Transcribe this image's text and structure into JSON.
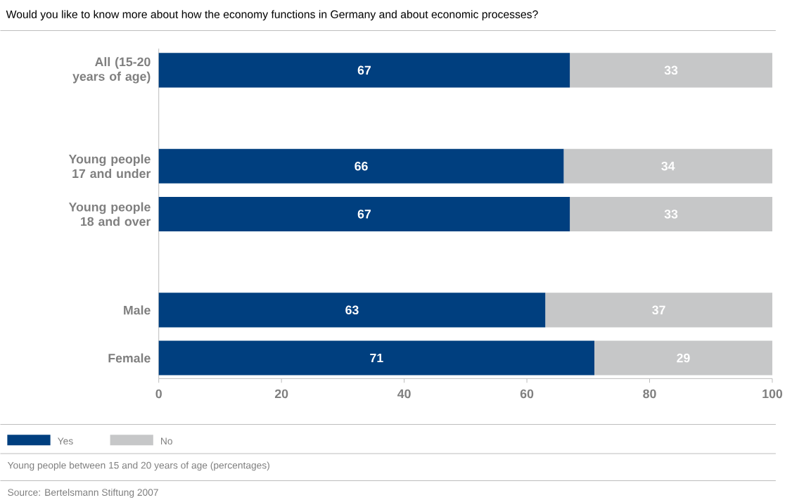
{
  "chart_data": {
    "type": "bar",
    "orientation": "horizontal",
    "stacked": true,
    "title": "Would you like to know more about how the economy functions in Germany and about economic processes?",
    "categories": [
      "All (15-20 years of age)",
      null,
      "Young people 17 and under",
      "Young people 18 and over",
      null,
      "Male",
      "Female"
    ],
    "series": [
      {
        "name": "Yes",
        "color": "#003f7f",
        "values": [
          67,
          null,
          66,
          67,
          null,
          63,
          71
        ]
      },
      {
        "name": "No",
        "color": "#c6c7c8",
        "values": [
          33,
          null,
          34,
          33,
          null,
          37,
          29
        ]
      }
    ],
    "xlim": [
      0,
      100
    ],
    "xticks": [
      0,
      20,
      40,
      60,
      80,
      100
    ],
    "data_labels": true,
    "legend": "bottom left",
    "annotations": [
      "Young people between 15 and 20 years of age (percentages)",
      "Source: Bertelsmann Stiftung 2007"
    ]
  }
}
